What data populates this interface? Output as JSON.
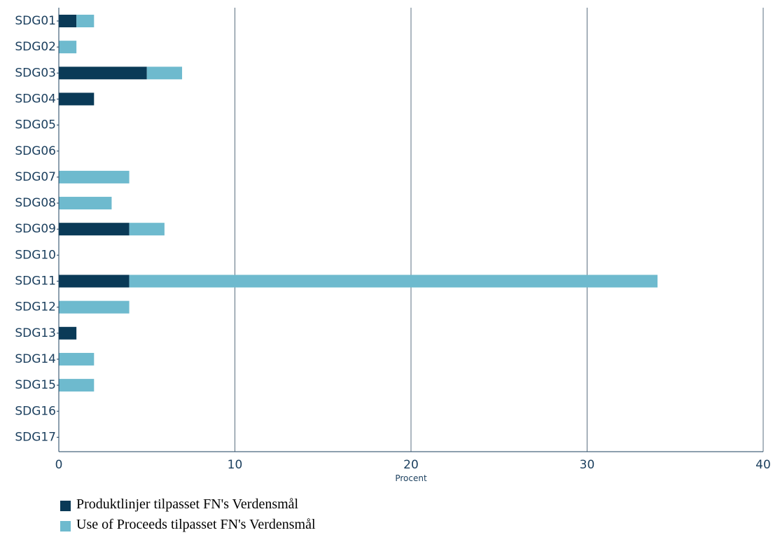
{
  "chart_data": {
    "type": "bar",
    "orientation": "horizontal",
    "stacked": true,
    "categories": [
      "SDG01",
      "SDG02",
      "SDG03",
      "SDG04",
      "SDG05",
      "SDG06",
      "SDG07",
      "SDG08",
      "SDG09",
      "SDG10",
      "SDG11",
      "SDG12",
      "SDG13",
      "SDG14",
      "SDG15",
      "SDG16",
      "SDG17"
    ],
    "series": [
      {
        "name": "Produktlinjer tilpasset FN's Verdensmål",
        "color": "#0a3a57",
        "values": [
          1,
          0,
          5,
          2,
          0,
          0,
          0,
          0,
          4,
          0,
          4,
          0,
          1,
          0,
          0,
          0,
          0
        ]
      },
      {
        "name": "Use of Proceeds tilpasset FN's Verdensmål",
        "color": "#6ebace",
        "values": [
          1,
          1,
          2,
          0,
          0,
          0,
          4,
          3,
          2,
          0,
          30,
          4,
          0,
          2,
          2,
          0,
          0
        ]
      }
    ],
    "title": "",
    "xlabel": "Procent",
    "ylabel": "",
    "xlim": [
      0,
      40
    ],
    "xticks": [
      0,
      10,
      20,
      30,
      40
    ],
    "grid": "vertical",
    "legend_position": "bottom-left"
  }
}
